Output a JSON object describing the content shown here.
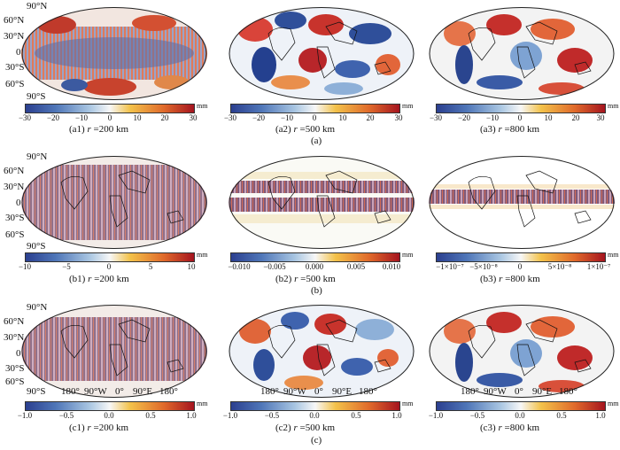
{
  "unit": "mm",
  "lat_labels": [
    "90°N",
    "60°N",
    "30°N",
    "0°",
    "30°S",
    "60°S",
    "90°S"
  ],
  "lon_labels": [
    "180°",
    "90°W",
    "0°",
    "90°E",
    "180°"
  ],
  "panels": {
    "a1": {
      "caption_prefix": "(a1)",
      "caption_r": "r",
      "caption_rest": " =200 km",
      "ticks": [
        "−30",
        "−20",
        "−10",
        "0",
        "10",
        "20",
        "30"
      ]
    },
    "a2": {
      "caption_prefix": "(a2)",
      "caption_r": "r",
      "caption_rest": " =500 km",
      "ticks": [
        "−30",
        "−20",
        "−10",
        "0",
        "10",
        "20",
        "30"
      ]
    },
    "a3": {
      "caption_prefix": "(a3)",
      "caption_r": "r",
      "caption_rest": " =800 km",
      "ticks": [
        "−30",
        "−20",
        "−10",
        "0",
        "10",
        "20",
        "30"
      ]
    },
    "b1": {
      "caption_prefix": "(b1)",
      "caption_r": "r",
      "caption_rest": " =200 km",
      "ticks": [
        "−10",
        "−5",
        "0",
        "5",
        "10"
      ]
    },
    "b2": {
      "caption_prefix": "(b2)",
      "caption_r": "r",
      "caption_rest": " =500 km",
      "ticks": [
        "−0.010",
        "−0.005",
        "0.000",
        "0.005",
        "0.010"
      ]
    },
    "b3": {
      "caption_prefix": "(b3)",
      "caption_r": "r",
      "caption_rest": " =800 km",
      "ticks": [
        "−1×10⁻⁷",
        "−5×10⁻⁸",
        "0",
        "5×10⁻⁸",
        "1×10⁻⁷"
      ]
    },
    "c1": {
      "caption_prefix": "(c1)",
      "caption_r": "r",
      "caption_rest": " =200 km",
      "ticks": [
        "−1.0",
        "−0.5",
        "0.0",
        "0.5",
        "1.0"
      ]
    },
    "c2": {
      "caption_prefix": "(c2)",
      "caption_r": "r",
      "caption_rest": " =500 km",
      "ticks": [
        "−1.0",
        "−0.5",
        "0.0",
        "0.5",
        "1.0"
      ]
    },
    "c3": {
      "caption_prefix": "(c3)",
      "caption_r": "r",
      "caption_rest": " =800 km",
      "ticks": [
        "−1.0",
        "−0.5",
        "0.0",
        "0.5",
        "1.0"
      ]
    }
  },
  "row_labels": {
    "a": "(a)",
    "b": "(b)",
    "c": "(c)"
  },
  "colors": {
    "negative": "#2b3f8f",
    "zero": "#f7f7f7",
    "positive": "#a5141f"
  }
}
